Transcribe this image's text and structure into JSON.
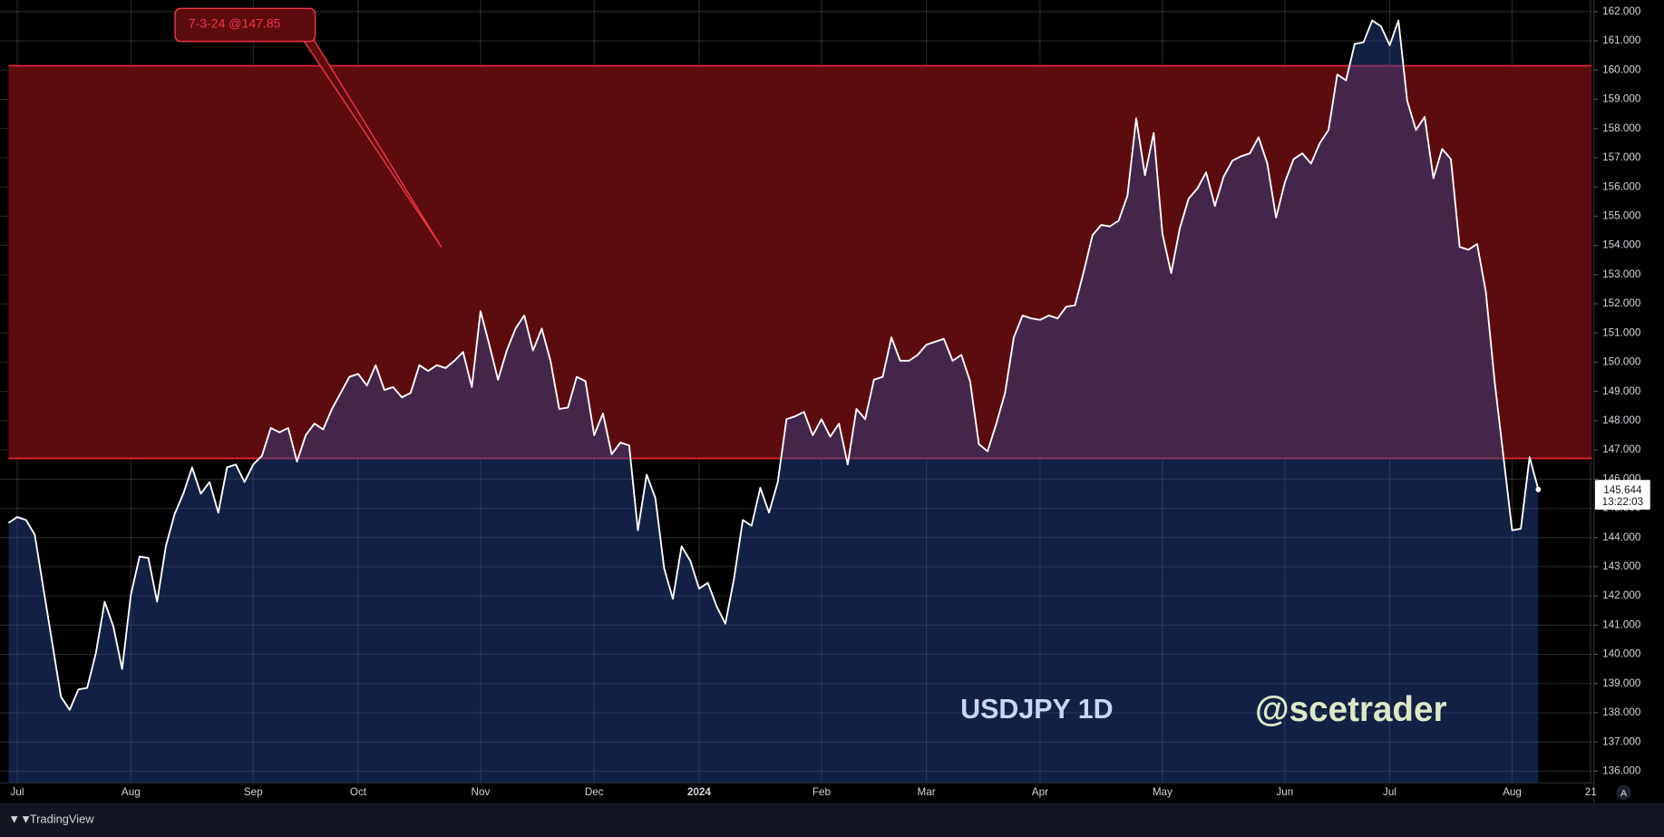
{
  "chart_data": {
    "type": "line",
    "title": "USDJPY 1D",
    "watermark": "@scetrader",
    "brand": "TradingView",
    "countdown": "13:22:03",
    "axis_button": "A",
    "color": "#ffffff",
    "area_color": "rgba(40,70,150,0.45)",
    "grid": true,
    "zone": {
      "top": 160.15,
      "bottom": 146.71,
      "color": "#5d0c0e",
      "border": "#e0252d"
    },
    "annotation": {
      "text": "7-3-24 @147.85",
      "color": "#f23645"
    },
    "ylim": [
      135.6,
      162.4
    ],
    "yticks": [
      {
        "value": 136,
        "label": "136.000"
      },
      {
        "value": 137,
        "label": "137.000"
      },
      {
        "value": 138,
        "label": "138.000"
      },
      {
        "value": 139,
        "label": "139.000"
      },
      {
        "value": 140,
        "label": "140.000"
      },
      {
        "value": 141,
        "label": "141.000"
      },
      {
        "value": 142,
        "label": "142.000"
      },
      {
        "value": 143,
        "label": "143.000"
      },
      {
        "value": 144,
        "label": "144.000"
      },
      {
        "value": 145,
        "label": "145.000"
      },
      {
        "value": 146,
        "label": "146.000"
      },
      {
        "value": 147,
        "label": "147.000"
      },
      {
        "value": 148,
        "label": "148.000"
      },
      {
        "value": 149,
        "label": "149.000"
      },
      {
        "value": 150,
        "label": "150.000"
      },
      {
        "value": 151,
        "label": "151.000"
      },
      {
        "value": 152,
        "label": "152.000"
      },
      {
        "value": 153,
        "label": "153.000"
      },
      {
        "value": 154,
        "label": "154.000"
      },
      {
        "value": 155,
        "label": "155.000"
      },
      {
        "value": 156,
        "label": "156.000"
      },
      {
        "value": 157,
        "label": "157.000"
      },
      {
        "value": 158,
        "label": "158.000"
      },
      {
        "value": 159,
        "label": "159.000"
      },
      {
        "value": 160,
        "label": "160.000"
      },
      {
        "value": 161,
        "label": "161.000"
      },
      {
        "value": 162,
        "label": "162.000"
      }
    ],
    "categories": [
      null,
      "Jul",
      null,
      null,
      null,
      null,
      null,
      null,
      null,
      null,
      null,
      null,
      null,
      null,
      "Aug",
      null,
      null,
      null,
      null,
      null,
      null,
      null,
      null,
      null,
      null,
      null,
      null,
      null,
      "Sep",
      null,
      null,
      null,
      null,
      null,
      null,
      null,
      null,
      null,
      null,
      null,
      "Oct",
      null,
      null,
      null,
      null,
      null,
      null,
      null,
      null,
      null,
      null,
      null,
      null,
      null,
      "Nov",
      null,
      null,
      null,
      null,
      null,
      null,
      null,
      null,
      null,
      null,
      null,
      null,
      "Dec",
      null,
      null,
      null,
      null,
      null,
      null,
      null,
      null,
      null,
      null,
      null,
      "2024",
      null,
      null,
      null,
      null,
      null,
      null,
      null,
      null,
      null,
      null,
      null,
      null,
      null,
      "Feb",
      null,
      null,
      null,
      null,
      null,
      null,
      null,
      null,
      null,
      null,
      null,
      "Mar",
      null,
      null,
      null,
      null,
      null,
      null,
      null,
      null,
      null,
      null,
      null,
      null,
      "Apr",
      null,
      null,
      null,
      null,
      null,
      null,
      null,
      null,
      null,
      null,
      null,
      null,
      null,
      "May",
      null,
      null,
      null,
      null,
      null,
      null,
      null,
      null,
      null,
      null,
      null,
      null,
      null,
      "Jun",
      null,
      null,
      null,
      null,
      null,
      null,
      null,
      null,
      null,
      null,
      null,
      "Jul",
      null,
      null,
      null,
      null,
      null,
      null,
      null,
      null,
      null,
      null,
      null,
      null,
      null,
      "Aug",
      null,
      null,
      null,
      null,
      null,
      null,
      null,
      null,
      "21"
    ],
    "values": [
      144.5,
      144.7,
      144.6,
      144.1,
      142.25,
      140.4,
      138.55,
      138.1,
      138.8,
      138.85,
      140.05,
      141.8,
      140.95,
      139.5,
      142.05,
      143.35,
      143.3,
      141.8,
      143.7,
      144.8,
      145.5,
      146.4,
      145.5,
      145.9,
      144.85,
      146.4,
      146.5,
      145.9,
      146.5,
      146.8,
      147.75,
      147.6,
      147.75,
      146.6,
      147.5,
      147.9,
      147.7,
      148.4,
      148.95,
      149.5,
      149.6,
      149.2,
      149.9,
      149.05,
      149.15,
      148.8,
      148.95,
      149.9,
      149.7,
      149.9,
      149.8,
      150.05,
      150.35,
      149.15,
      151.75,
      150.6,
      149.4,
      150.4,
      151.15,
      151.6,
      150.4,
      151.15,
      150.05,
      148.4,
      148.45,
      149.5,
      149.35,
      147.5,
      148.25,
      146.85,
      147.25,
      147.15,
      144.25,
      146.15,
      145.35,
      142.95,
      141.9,
      143.7,
      143.2,
      142.25,
      142.45,
      141.65,
      141.05,
      142.6,
      144.6,
      144.4,
      145.7,
      144.85,
      145.9,
      148.05,
      148.15,
      148.3,
      147.5,
      148.05,
      147.45,
      147.9,
      146.5,
      148.4,
      148.05,
      149.4,
      149.5,
      150.85,
      150.05,
      150.05,
      150.25,
      150.6,
      150.7,
      150.8,
      150.05,
      150.25,
      149.35,
      147.2,
      146.95,
      147.9,
      148.95,
      150.85,
      151.6,
      151.5,
      151.45,
      151.6,
      151.5,
      151.9,
      151.95,
      153.1,
      154.35,
      154.7,
      154.65,
      154.85,
      155.7,
      158.35,
      156.4,
      157.85,
      154.4,
      153.05,
      154.6,
      155.6,
      155.95,
      156.5,
      155.35,
      156.35,
      156.9,
      157.05,
      157.15,
      157.7,
      156.8,
      154.95,
      156.15,
      156.95,
      157.15,
      156.8,
      157.5,
      157.95,
      159.85,
      159.65,
      160.9,
      160.95,
      161.7,
      161.5,
      160.85,
      161.7,
      158.95,
      157.95,
      158.4,
      156.3,
      157.3,
      156.95,
      153.95,
      153.85,
      154.05,
      152.4,
      149.35,
      146.8,
      144.25,
      144.3,
      146.75,
      145.644,
      null,
      null,
      null,
      null,
      null,
      null
    ]
  }
}
